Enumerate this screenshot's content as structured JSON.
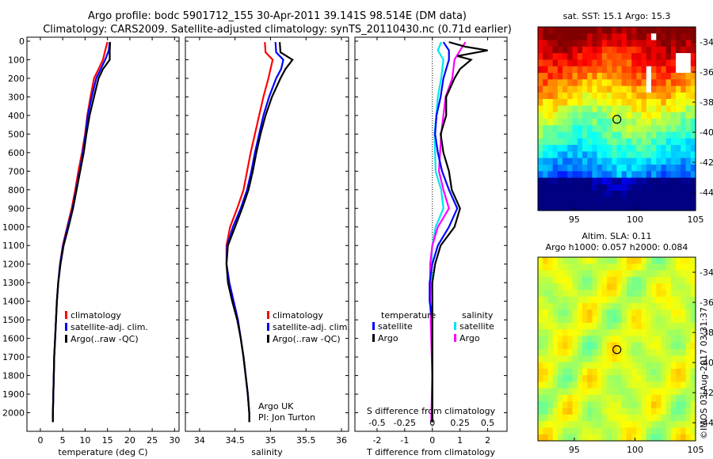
{
  "title_line1": "Argo profile: bodc 5901712_155 30-Apr-2011 39.141S 98.514E (DM data)",
  "title_line2": "Climatology: CARS2009. Satellite-adjusted climatology: synTS_20110430.nc (0.71d earlier)",
  "side_text": "©IMOS 03-Aug-2017 03:31:37",
  "colors": {
    "climatology": "#ff0000",
    "satellite": "#0000ff",
    "argo": "#000000",
    "sal_satellite": "#00e5ee",
    "sal_argo": "#ff00ff"
  },
  "chart_data": [
    {
      "type": "line",
      "xlabel": "temperature (deg C)",
      "xticks": [
        "0",
        "5",
        "10",
        "15",
        "20",
        "25",
        "30"
      ],
      "xlim": [
        -3,
        31
      ],
      "ylim": [
        2100,
        0
      ],
      "yticks": [
        "0",
        "100",
        "200",
        "300",
        "400",
        "500",
        "600",
        "700",
        "800",
        "900",
        "1000",
        "1100",
        "1200",
        "1300",
        "1400",
        "1500",
        "1600",
        "1700",
        "1800",
        "1900",
        "2000"
      ],
      "legend": [
        "climatology",
        "satellite-adj. clim.",
        "Argo(..raw -QC)"
      ],
      "series": [
        {
          "name": "climatology",
          "color": "#ff0000",
          "points": [
            [
              15,
              5
            ],
            [
              14.5,
              50
            ],
            [
              14,
              100
            ],
            [
              13,
              150
            ],
            [
              12,
              200
            ],
            [
              11.2,
              300
            ],
            [
              10.5,
              400
            ],
            [
              10,
              500
            ],
            [
              9.3,
              600
            ],
            [
              8.5,
              700
            ],
            [
              7.8,
              800
            ],
            [
              7,
              900
            ],
            [
              6,
              1000
            ],
            [
              5,
              1100
            ],
            [
              4.4,
              1200
            ],
            [
              4,
              1300
            ],
            [
              3.7,
              1400
            ],
            [
              3.5,
              1500
            ],
            [
              3.3,
              1600
            ],
            [
              3.1,
              1700
            ],
            [
              3,
              1800
            ],
            [
              2.9,
              1900
            ],
            [
              2.8,
              2000
            ],
            [
              2.8,
              2050
            ]
          ]
        },
        {
          "name": "satellite-adj. clim.",
          "color": "#0000ff",
          "points": [
            [
              15.5,
              5
            ],
            [
              15.3,
              50
            ],
            [
              14.5,
              100
            ],
            [
              13.5,
              150
            ],
            [
              12.5,
              200
            ],
            [
              11.5,
              300
            ],
            [
              10.6,
              400
            ],
            [
              10.1,
              500
            ],
            [
              9.5,
              600
            ],
            [
              8.8,
              700
            ],
            [
              8,
              800
            ],
            [
              7.2,
              900
            ],
            [
              6.1,
              1000
            ],
            [
              5.1,
              1100
            ],
            [
              4.4,
              1200
            ],
            [
              4,
              1300
            ],
            [
              3.7,
              1400
            ],
            [
              3.5,
              1500
            ],
            [
              3.3,
              1600
            ],
            [
              3.1,
              1700
            ],
            [
              3,
              1800
            ],
            [
              2.9,
              1900
            ],
            [
              2.8,
              2000
            ],
            [
              2.8,
              2050
            ]
          ]
        },
        {
          "name": "Argo(..raw -QC)",
          "color": "#000000",
          "points": [
            [
              15.6,
              5
            ],
            [
              15.5,
              50
            ],
            [
              15.5,
              100
            ],
            [
              14,
              150
            ],
            [
              13,
              200
            ],
            [
              12,
              300
            ],
            [
              11,
              400
            ],
            [
              10.3,
              500
            ],
            [
              9.7,
              600
            ],
            [
              8.9,
              700
            ],
            [
              8.1,
              800
            ],
            [
              7.3,
              900
            ],
            [
              6.3,
              1000
            ],
            [
              5.2,
              1100
            ],
            [
              4.5,
              1200
            ],
            [
              4,
              1300
            ],
            [
              3.7,
              1400
            ],
            [
              3.5,
              1500
            ],
            [
              3.3,
              1600
            ],
            [
              3.1,
              1700
            ],
            [
              3,
              1800
            ],
            [
              2.9,
              1900
            ],
            [
              2.8,
              2000
            ],
            [
              2.8,
              2050
            ]
          ]
        }
      ]
    },
    {
      "type": "line",
      "xlabel": "salinity",
      "xticks": [
        "34",
        "34.5",
        "35",
        "35.5",
        "36"
      ],
      "xlim": [
        33.8,
        36.1
      ],
      "ylim": [
        2100,
        0
      ],
      "legend": [
        "climatology",
        "satellite-adj. clim.",
        "Argo(..raw -QC)"
      ],
      "annotation": [
        "Argo UK",
        "PI: Jon Turton"
      ],
      "series": [
        {
          "name": "climatology",
          "color": "#ff0000",
          "points": [
            [
              34.92,
              5
            ],
            [
              34.93,
              60
            ],
            [
              35.03,
              100
            ],
            [
              35,
              150
            ],
            [
              34.97,
              200
            ],
            [
              34.9,
              300
            ],
            [
              34.84,
              400
            ],
            [
              34.78,
              500
            ],
            [
              34.72,
              600
            ],
            [
              34.67,
              700
            ],
            [
              34.62,
              800
            ],
            [
              34.53,
              900
            ],
            [
              34.43,
              1000
            ],
            [
              34.38,
              1100
            ],
            [
              34.38,
              1200
            ],
            [
              34.42,
              1300
            ],
            [
              34.48,
              1400
            ],
            [
              34.54,
              1500
            ],
            [
              34.58,
              1600
            ],
            [
              34.62,
              1700
            ],
            [
              34.65,
              1800
            ],
            [
              34.68,
              1900
            ],
            [
              34.7,
              2000
            ],
            [
              34.7,
              2050
            ]
          ]
        },
        {
          "name": "satellite-adj. clim.",
          "color": "#0000ff",
          "points": [
            [
              35.07,
              5
            ],
            [
              35.08,
              60
            ],
            [
              35.18,
              100
            ],
            [
              35.15,
              150
            ],
            [
              35.08,
              200
            ],
            [
              34.98,
              300
            ],
            [
              34.9,
              400
            ],
            [
              34.84,
              500
            ],
            [
              34.78,
              600
            ],
            [
              34.73,
              700
            ],
            [
              34.67,
              800
            ],
            [
              34.58,
              900
            ],
            [
              34.47,
              1000
            ],
            [
              34.39,
              1100
            ],
            [
              34.38,
              1200
            ],
            [
              34.42,
              1300
            ],
            [
              34.48,
              1400
            ],
            [
              34.54,
              1500
            ],
            [
              34.58,
              1600
            ],
            [
              34.62,
              1700
            ],
            [
              34.65,
              1800
            ],
            [
              34.68,
              1900
            ],
            [
              34.7,
              2000
            ],
            [
              34.7,
              2050
            ]
          ]
        },
        {
          "name": "Argo(..raw -QC)",
          "color": "#000000",
          "points": [
            [
              35.13,
              5
            ],
            [
              35.14,
              60
            ],
            [
              35.31,
              100
            ],
            [
              35.21,
              150
            ],
            [
              35.14,
              200
            ],
            [
              35.02,
              300
            ],
            [
              34.93,
              400
            ],
            [
              34.86,
              500
            ],
            [
              34.8,
              600
            ],
            [
              34.75,
              700
            ],
            [
              34.69,
              800
            ],
            [
              34.6,
              900
            ],
            [
              34.5,
              1000
            ],
            [
              34.4,
              1100
            ],
            [
              34.38,
              1200
            ],
            [
              34.4,
              1300
            ],
            [
              34.46,
              1400
            ],
            [
              34.53,
              1500
            ],
            [
              34.58,
              1600
            ],
            [
              34.62,
              1700
            ],
            [
              34.65,
              1800
            ],
            [
              34.68,
              1900
            ],
            [
              34.7,
              2000
            ],
            [
              34.7,
              2050
            ]
          ]
        }
      ]
    },
    {
      "type": "line",
      "xlabel": "T difference from climatology",
      "xticks": [
        "-2",
        "-1",
        "0",
        "1",
        "2"
      ],
      "x2label": "S difference from climatology",
      "x2ticks": [
        "-0.5",
        "-0.25",
        "0",
        "0.25",
        "0.5"
      ],
      "xlim": [
        -2.8,
        2.7
      ],
      "ylim": [
        2100,
        0
      ],
      "legend_temperature": {
        "heading": "temperature",
        "items": [
          "satellite",
          "Argo"
        ]
      },
      "legend_salinity": {
        "heading": "salinity",
        "items": [
          "satellite",
          "Argo"
        ]
      },
      "series": [
        {
          "name": "satellite",
          "color": "#0000ff",
          "points": [
            [
              0.4,
              5
            ],
            [
              0.6,
              50
            ],
            [
              0.6,
              100
            ],
            [
              0.5,
              150
            ],
            [
              0.4,
              200
            ],
            [
              0.3,
              300
            ],
            [
              0.15,
              400
            ],
            [
              0.1,
              500
            ],
            [
              0.2,
              600
            ],
            [
              0.35,
              700
            ],
            [
              0.6,
              800
            ],
            [
              0.9,
              900
            ],
            [
              0.6,
              1000
            ],
            [
              0.2,
              1100
            ],
            [
              0,
              1200
            ],
            [
              -0.1,
              1300
            ],
            [
              -0.1,
              1400
            ],
            [
              0,
              1500
            ],
            [
              0,
              1600
            ],
            [
              0,
              1700
            ],
            [
              0,
              1800
            ],
            [
              0,
              1900
            ],
            [
              0,
              2000
            ],
            [
              0,
              2050
            ]
          ]
        },
        {
          "name": "Argo",
          "color": "#000000",
          "points": [
            [
              0.6,
              5
            ],
            [
              1.2,
              30
            ],
            [
              2,
              50
            ],
            [
              0.9,
              80
            ],
            [
              1.4,
              100
            ],
            [
              1,
              150
            ],
            [
              0.8,
              200
            ],
            [
              0.5,
              300
            ],
            [
              0.5,
              400
            ],
            [
              0.3,
              500
            ],
            [
              0.4,
              600
            ],
            [
              0.6,
              700
            ],
            [
              0.7,
              800
            ],
            [
              1,
              900
            ],
            [
              0.8,
              1000
            ],
            [
              0.3,
              1100
            ],
            [
              0.1,
              1200
            ],
            [
              0,
              1300
            ],
            [
              0,
              1400
            ],
            [
              0,
              1500
            ],
            [
              0,
              1600
            ],
            [
              0,
              1700
            ],
            [
              0,
              1800
            ],
            [
              0,
              1900
            ],
            [
              0,
              2000
            ],
            [
              0,
              2050
            ]
          ]
        }
      ],
      "series2": [
        {
          "name": "satellite",
          "color": "#00e5ee",
          "points": [
            [
              0.08,
              5
            ],
            [
              0.05,
              50
            ],
            [
              0.1,
              100
            ],
            [
              0.08,
              200
            ],
            [
              0.05,
              300
            ],
            [
              0.02,
              500
            ],
            [
              0.03,
              700
            ],
            [
              0.08,
              800
            ],
            [
              0.1,
              900
            ],
            [
              0.03,
              1000
            ],
            [
              0,
              1100
            ],
            [
              -0.01,
              1200
            ],
            [
              0,
              1400
            ],
            [
              0,
              1600
            ],
            [
              0,
              2050
            ]
          ]
        },
        {
          "name": "Argo",
          "color": "#ff00ff",
          "points": [
            [
              0.3,
              5
            ],
            [
              0.25,
              50
            ],
            [
              0.2,
              100
            ],
            [
              0.18,
              200
            ],
            [
              0.12,
              300
            ],
            [
              0.08,
              500
            ],
            [
              0.06,
              700
            ],
            [
              0.1,
              800
            ],
            [
              0.15,
              900
            ],
            [
              0.05,
              1000
            ],
            [
              0,
              1100
            ],
            [
              -0.02,
              1200
            ],
            [
              -0.02,
              1400
            ],
            [
              -0.01,
              1600
            ],
            [
              0,
              1800
            ],
            [
              -0.01,
              2050
            ]
          ]
        }
      ]
    },
    {
      "type": "heatmap",
      "title": "sat. SST: 15.1 Argo: 15.3",
      "xticks": [
        "95",
        "100",
        "105"
      ],
      "yticks": [
        "-34",
        "-36",
        "-38",
        "-40",
        "-42",
        "-44"
      ],
      "xlim": [
        92,
        105
      ],
      "ylim": [
        -33,
        -45.2
      ],
      "marker": {
        "lon": 98.514,
        "lat": -39.141
      },
      "colormap": "jet"
    },
    {
      "type": "heatmap",
      "title_line1": "Altim. SLA: 0.11",
      "title_line2": "Argo h1000: 0.057 h2000: 0.084",
      "xticks": [
        "95",
        "100",
        "105"
      ],
      "yticks": [
        "-34",
        "-36",
        "-38",
        "-40",
        "-42",
        "-44"
      ],
      "xlim": [
        92,
        105
      ],
      "ylim": [
        -33,
        -45.2
      ],
      "marker": {
        "lon": 98.514,
        "lat": -39.141
      },
      "colormap": "jet"
    }
  ]
}
